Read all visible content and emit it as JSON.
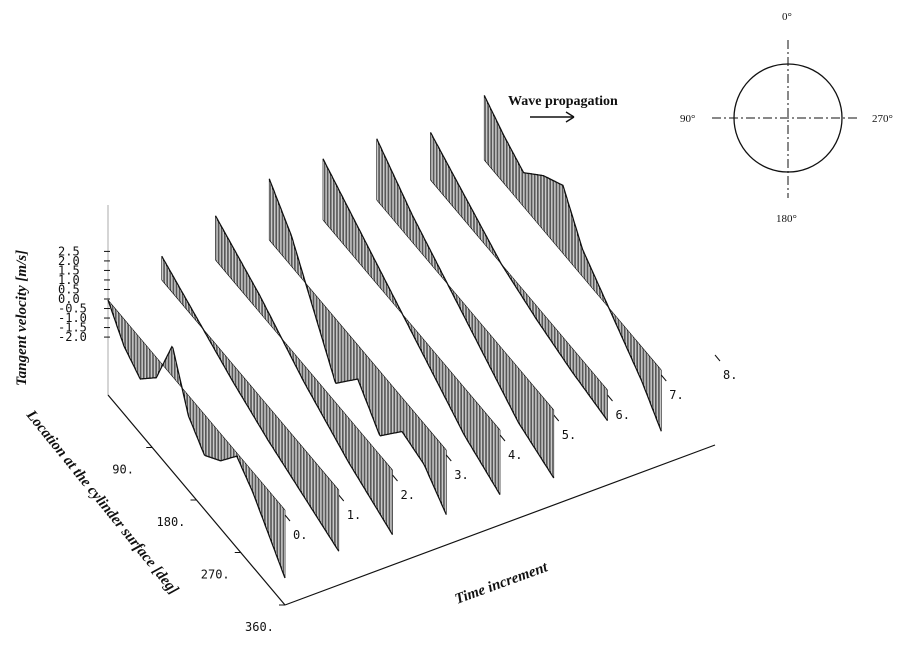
{
  "chart_data": {
    "type": "line",
    "subtype": "3d-waterfall",
    "title": "",
    "xlabel": "Time increment",
    "ylabel": "Tangent velocity [m/s]",
    "zlabel": "Location at the cylinder surface [deg]",
    "x_ticks": [
      "0.",
      "1.",
      "2.",
      "3.",
      "4.",
      "5.",
      "6.",
      "7.",
      "8."
    ],
    "z_ticks": [
      "90.",
      "180.",
      "270.",
      "360."
    ],
    "y_ticks": [
      "2.5",
      "2.0",
      "1.5",
      "1.0",
      "0.5",
      "0.0",
      "-0.5",
      "-1.0",
      "-1.5",
      "-2.0"
    ],
    "ylim": [
      -2.0,
      2.5
    ],
    "xlim": [
      0,
      8
    ],
    "zlim": [
      0,
      360
    ],
    "grid": false,
    "series": [
      {
        "time": 0,
        "values": [
          0.0,
          -0.8,
          -1.2,
          -0.6,
          0.9,
          -0.6,
          -1.2,
          -0.8,
          -0.1,
          -0.6,
          -1.3,
          -2.0
        ]
      },
      {
        "time": 1,
        "values": [
          0.7,
          0.1,
          -0.5,
          -1.0,
          -1.4,
          -1.8
        ]
      },
      {
        "time": 2,
        "values": [
          1.3,
          0.5,
          -0.5,
          -1.3,
          -1.9
        ]
      },
      {
        "time": 3,
        "values": [
          1.8,
          0.9,
          -0.5,
          -1.9,
          -1.0,
          -1.9,
          -1.0,
          -1.2,
          -1.9
        ]
      },
      {
        "time": 4,
        "values": [
          1.8,
          1.0,
          0.2,
          -0.6,
          -1.4,
          -1.9
        ]
      },
      {
        "time": 5,
        "values": [
          1.8,
          0.8,
          0.0,
          -0.8,
          -1.6,
          -2.0
        ]
      },
      {
        "time": 6,
        "values": [
          1.4,
          0.7,
          0.0,
          -0.4,
          -0.7,
          -0.9
        ]
      },
      {
        "time": 7,
        "values": [
          1.9,
          1.4,
          1.0,
          1.6,
          2.0,
          0.8,
          0.2,
          -0.4,
          -1.0,
          -1.8
        ]
      }
    ]
  },
  "annotation": {
    "wave_label": "Wave propagation"
  },
  "compass": {
    "labels": {
      "top": "0°",
      "left": "90°",
      "right": "270°",
      "bottom": "180°"
    }
  }
}
